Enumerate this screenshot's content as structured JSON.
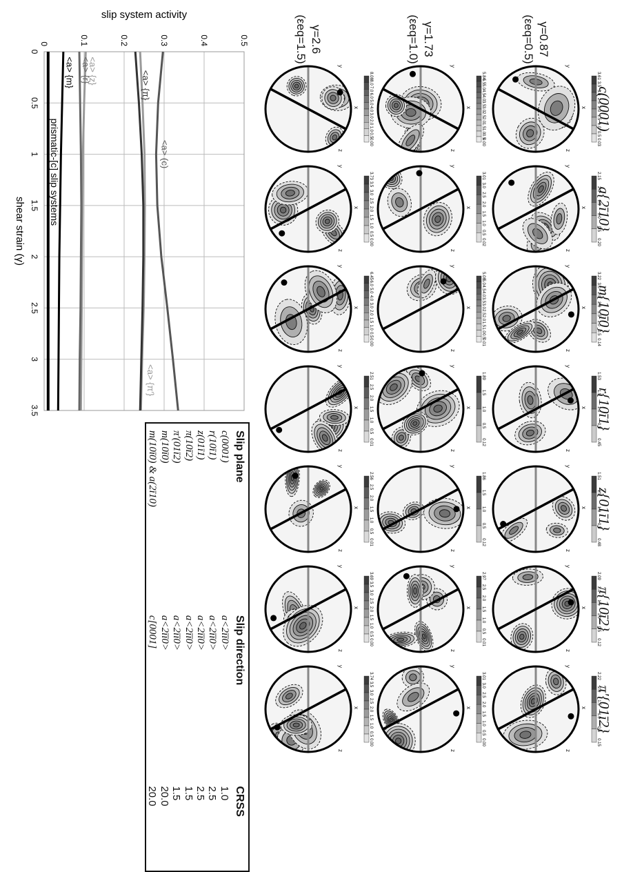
{
  "columns": [
    "c(0001)",
    "a{2ī10}",
    "m{10ī0}",
    "r{10ī1}",
    "z{01ī1}",
    "π{10ī2}",
    "π′{01ī2}"
  ],
  "rows": [
    {
      "gamma": "γ=0.87",
      "eps": "(εeq=0.5)",
      "scales": [
        [
          "3.61",
          "3.5",
          "3.0",
          "2.5",
          "2.0",
          "1.5",
          "1.0",
          "0.5",
          "0.03"
        ],
        [
          "2.15",
          "2.0",
          "1.5",
          "1.0",
          "0.5",
          "0.20"
        ],
        [
          "3.22",
          "3.0",
          "2.5",
          "2.0",
          "1.5",
          "1.0",
          "0.5",
          "0.14"
        ],
        [
          "1.53",
          "1.5",
          "1.0",
          "0.5",
          "0.45"
        ],
        [
          "1.51",
          "1.5",
          "1.0",
          "0.5",
          "0.48"
        ],
        [
          "2.09",
          "2.0",
          "1.5",
          "1.0",
          "0.5",
          "0.12"
        ],
        [
          "2.22",
          "2.0",
          "1.5",
          "1.0",
          "0.5",
          "0.15"
        ]
      ]
    },
    {
      "gamma": "γ=1.73",
      "eps": "(εeq=1.0)",
      "scales": [
        [
          "5.84",
          "5.5",
          "5.0",
          "4.5",
          "4.0",
          "3.5",
          "3.0",
          "2.5",
          "2.0",
          "1.5",
          "1.0",
          "0.5",
          "0.00"
        ],
        [
          "3.01",
          "3.0",
          "2.5",
          "2.0",
          "1.5",
          "1.0",
          "0.5",
          "0.02"
        ],
        [
          "5.08",
          "5.0",
          "4.5",
          "4.0",
          "3.5",
          "3.0",
          "2.5",
          "2.0",
          "1.5",
          "1.0",
          "0.5",
          "0.01"
        ],
        [
          "1.89",
          "1.5",
          "1.0",
          "0.5",
          "0.12"
        ],
        [
          "1.86",
          "1.5",
          "1.0",
          "0.5",
          "0.12"
        ],
        [
          "2.97",
          "2.5",
          "2.0",
          "1.5",
          "1.0",
          "0.5",
          "0.01"
        ],
        [
          "3.01",
          "3.0",
          "2.5",
          "2.0",
          "1.5",
          "1.0",
          "0.5",
          "0.00"
        ]
      ]
    },
    {
      "gamma": "γ=2.6",
      "eps": "(εeq=1.5)",
      "scales": [
        [
          "8.08",
          "8.0",
          "7.0",
          "6.0",
          "5.0",
          "4.0",
          "3.0",
          "2.0",
          "1.0",
          "0.5",
          "0.00"
        ],
        [
          "3.73",
          "3.5",
          "3.0",
          "2.5",
          "2.0",
          "1.5",
          "1.0",
          "0.5",
          "0.00"
        ],
        [
          "6.45",
          "6.0",
          "5.0",
          "4.0",
          "3.0",
          "2.0",
          "1.5",
          "1.0",
          "0.5",
          "0.00"
        ],
        [
          "2.51",
          "2.5",
          "2.0",
          "1.5",
          "1.0",
          "0.5",
          "0.01"
        ],
        [
          "2.56",
          "2.5",
          "2.0",
          "1.5",
          "1.0",
          "0.5",
          "0.01"
        ],
        [
          "3.69",
          "3.5",
          "3.0",
          "2.5",
          "2.0",
          "1.5",
          "1.0",
          "0.5",
          "0.00"
        ],
        [
          "3.74",
          "3.5",
          "3.0",
          "2.5",
          "2.0",
          "1.5",
          "1.0",
          "0.5",
          "0.00"
        ]
      ]
    }
  ],
  "pole_labels": {
    "x": "x",
    "y": "y",
    "z": "z"
  },
  "chart_data": {
    "type": "line",
    "xlabel": "shear strain (γ)",
    "ylabel": "slip system activity",
    "xlim": [
      0,
      3.5
    ],
    "ylim": [
      0,
      0.5
    ],
    "xticks": [
      "0",
      "0.5",
      "1",
      "1.5",
      "2",
      "2.5",
      "3",
      "3.5"
    ],
    "yticks": [
      "0",
      "0.1",
      "0.2",
      "0.3",
      "0.4",
      "0.5"
    ],
    "x": [
      0,
      0.5,
      1,
      1.5,
      2,
      2.5,
      3,
      3.5
    ],
    "series": [
      {
        "name": "<a> (c)",
        "color": "#555555",
        "values": [
          0.297,
          0.285,
          0.28,
          0.283,
          0.293,
          0.308,
          0.322,
          0.335
        ]
      },
      {
        "name": "<a> {π′}",
        "color": "#9a9a9a",
        "values": [
          0.24,
          0.246,
          0.251,
          0.252,
          0.251,
          0.249,
          0.245,
          0.242
        ]
      },
      {
        "name": "<a> {π}",
        "color": "#333333",
        "values": [
          0.228,
          0.237,
          0.244,
          0.248,
          0.248,
          0.246,
          0.243,
          0.24
        ]
      },
      {
        "name": "<a> {z}",
        "color": "#999999",
        "values": [
          0.104,
          0.1,
          0.097,
          0.096,
          0.095,
          0.094,
          0.093,
          0.092
        ]
      },
      {
        "name": "<a> {r}",
        "color": "#666666",
        "values": [
          0.088,
          0.09,
          0.092,
          0.093,
          0.092,
          0.091,
          0.089,
          0.088
        ]
      },
      {
        "name": "<a> {m}",
        "color": "#000000",
        "values": [
          0.048,
          0.045,
          0.042,
          0.04,
          0.038,
          0.037,
          0.036,
          0.035
        ]
      },
      {
        "name": "prismatic-[c] slip systems",
        "color": "#000000",
        "values": [
          0.01,
          0.01,
          0.01,
          0.01,
          0.01,
          0.01,
          0.01,
          0.01
        ]
      }
    ]
  },
  "table": {
    "headers": [
      "Slip plane",
      "Slip direction",
      "CRSS"
    ],
    "rows": [
      [
        "c(0001)",
        "a<2īī0>",
        "1.0"
      ],
      [
        "r(10ī1)",
        "a<2īī0>",
        "2.5"
      ],
      [
        "z(01ī1)",
        "a<2īī0>",
        "2.5"
      ],
      [
        "π(10ī2)",
        "a<2īī0>",
        "1.5"
      ],
      [
        "π′(01ī2)",
        "a<2īī0>",
        "1.5"
      ],
      [
        "m(10ī0)",
        "a<2īī0>",
        "20.0"
      ],
      [
        "m(10ī0) & a(2ī10)",
        "c[0001]",
        "20.0"
      ]
    ]
  }
}
